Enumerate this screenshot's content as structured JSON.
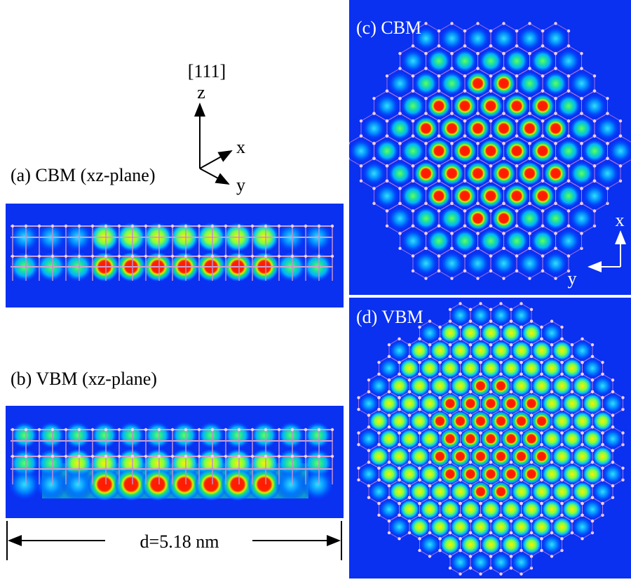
{
  "header": {
    "direction": "[111]",
    "axes": {
      "z": "z",
      "x": "x",
      "y": "y"
    }
  },
  "panels": [
    {
      "label": "(a) CBM (xz-plane)"
    },
    {
      "label": "(b) VBM (xz-plane)"
    },
    {
      "label": "(c) CBM",
      "axes": {
        "x": "x",
        "y": "y"
      }
    },
    {
      "label": "(d) VBM"
    }
  ],
  "scale": {
    "label": "d=5.18 nm"
  }
}
